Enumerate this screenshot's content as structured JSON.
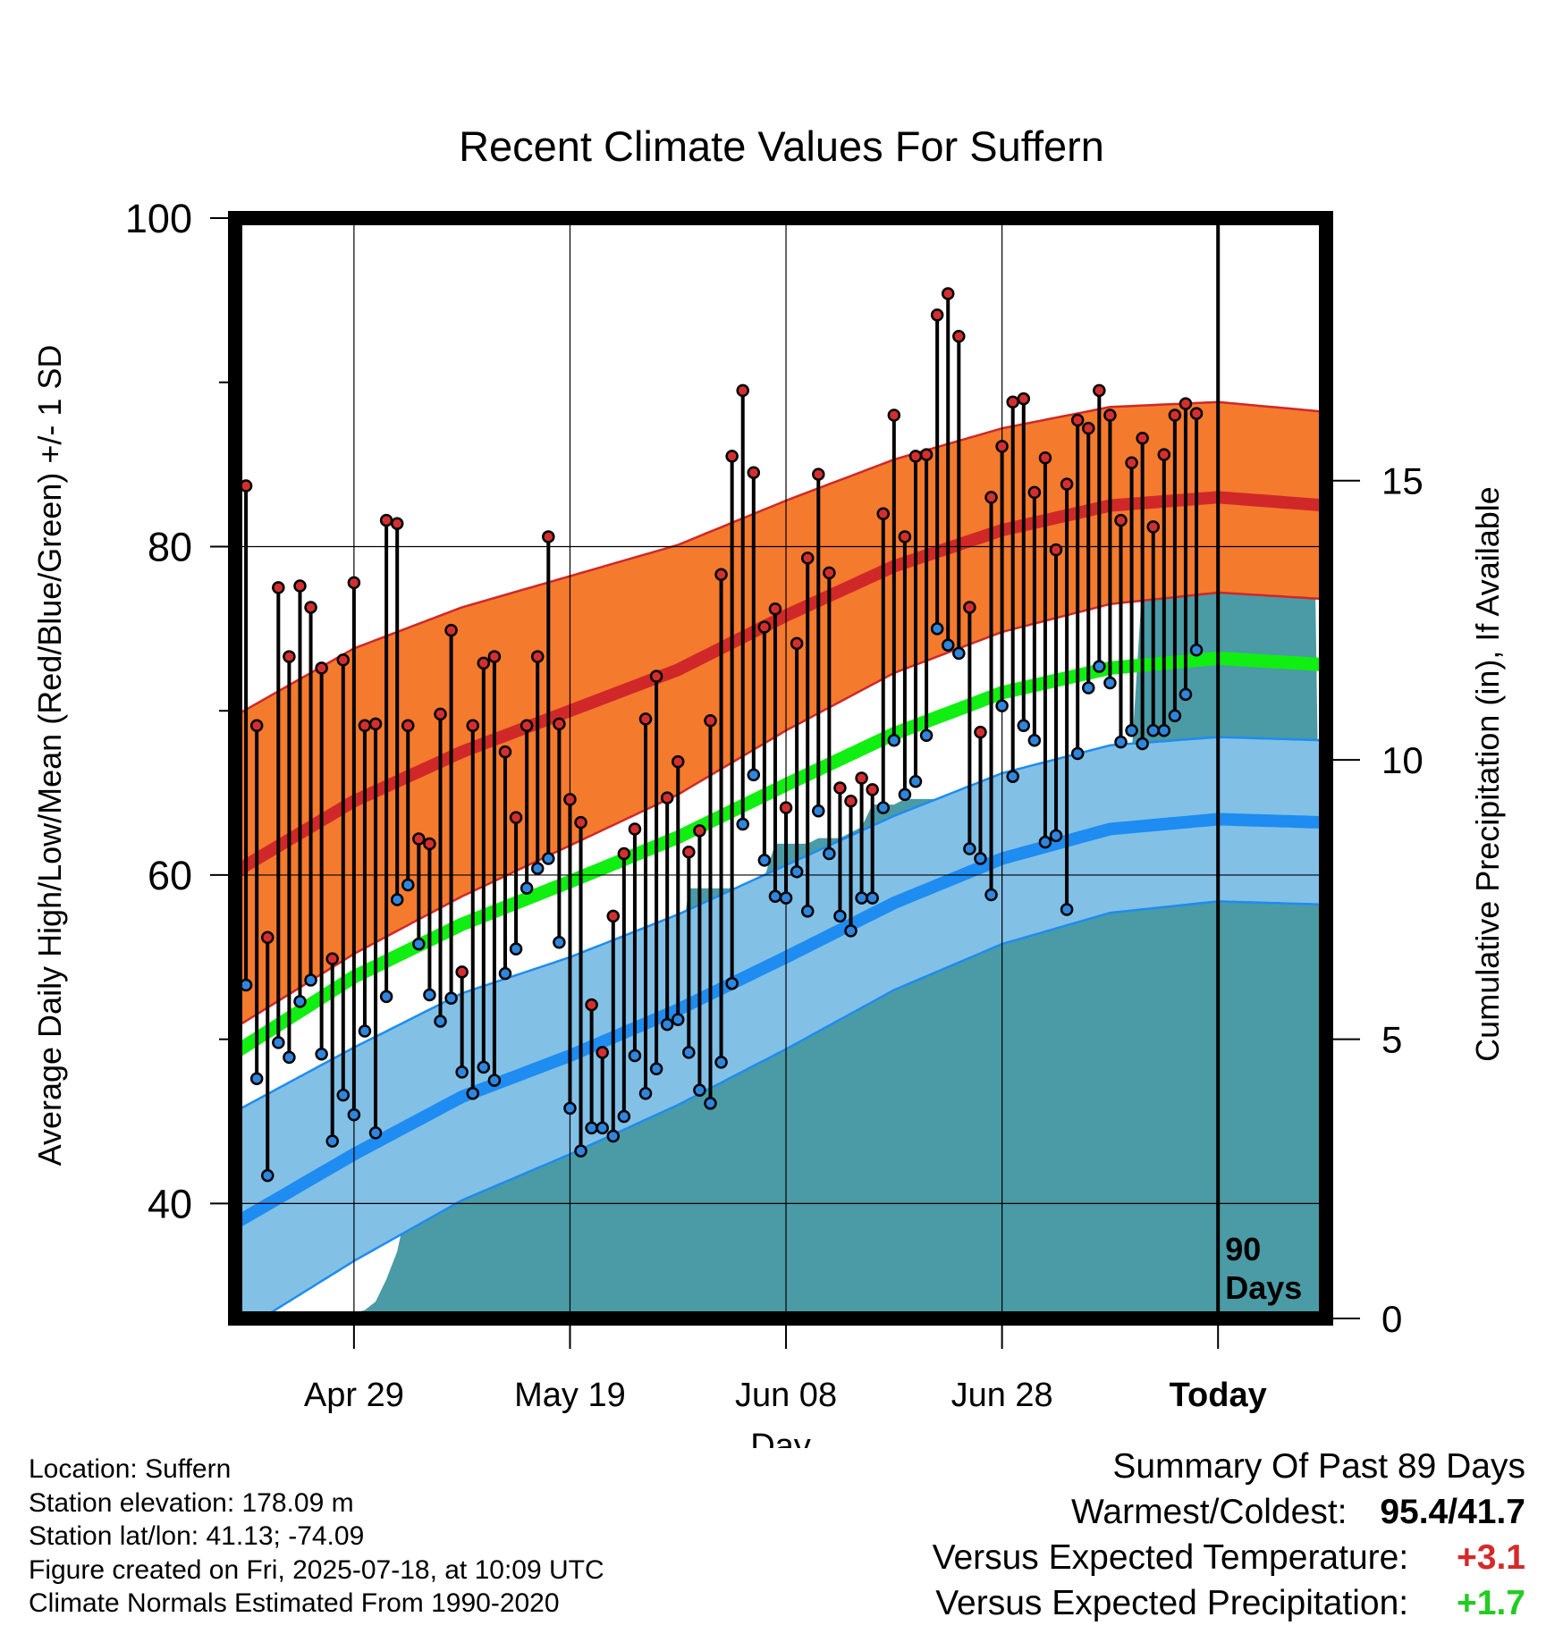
{
  "title": "Recent Climate Values For Suffern",
  "ylabel_left": "Average Daily High/Low/Mean (Red/Blue/Green) +/- 1 SD",
  "ylabel_right": "Cumulative Precipitation (in), If Available",
  "xlabel": "Day",
  "today_annotation": [
    "90",
    "Days"
  ],
  "footer": {
    "location": "Location: Suffern",
    "elevation": "Station elevation: 178.09 m",
    "latlon": "Station lat/lon: 41.13; -74.09",
    "created": "Figure created on Fri, 2025-07-18, at 10:09 UTC",
    "normals": "Climate Normals Estimated From 1990-2020"
  },
  "summary": {
    "heading": "Summary Of Past 89 Days",
    "warm_cold_label": "Warmest/Coldest:",
    "warm_cold_value": "95.4/41.7",
    "temp_label": "Versus Expected Temperature:",
    "temp_value": "+3.1",
    "temp_color": "#d42a2a",
    "precip_label": "Versus Expected Precipitation:",
    "precip_value": "+1.7",
    "precip_color": "#22cc22"
  },
  "colors": {
    "high_band": "#f47a2e",
    "high_line": "#d02828",
    "low_band": "#82c0e6",
    "low_line": "#1e8cf0",
    "mean_line": "#11ee11",
    "precip": "#4a9ba5",
    "high_dot": "#d32f2f",
    "low_dot": "#2e86de"
  },
  "chart_data": {
    "type": "line",
    "x_unit": "days, day 0 = Apr 19, Today = day 90",
    "xlim": [
      -1,
      100
    ],
    "ylim": [
      33,
      100
    ],
    "yticks": [
      40,
      60,
      80,
      100
    ],
    "precip_ylim": [
      0,
      19.7
    ],
    "precip_ticks": [
      0,
      5,
      10,
      15
    ],
    "xticks": [
      {
        "x": 10,
        "label": "Apr 29"
      },
      {
        "x": 30,
        "label": "May 19"
      },
      {
        "x": 50,
        "label": "Jun 08"
      },
      {
        "x": 70,
        "label": "Jun 28"
      },
      {
        "x": 90,
        "label": "Today"
      }
    ],
    "grid": true,
    "normals": {
      "x": [
        -1,
        10,
        20,
        30,
        40,
        50,
        60,
        70,
        80,
        90,
        100
      ],
      "high_mean": [
        60.2,
        64.5,
        67.5,
        70,
        72.5,
        75.8,
        78.8,
        81,
        82.5,
        83,
        82.5
      ],
      "high_sd": [
        9.5,
        9.3,
        8.8,
        8.2,
        7.6,
        7,
        6.5,
        6.2,
        6,
        5.8,
        5.7
      ],
      "low_mean": [
        38.8,
        43,
        46.5,
        49,
        51.8,
        55,
        58.3,
        61,
        62.8,
        63.4,
        63.2
      ],
      "low_sd": [
        6.8,
        6.5,
        6.3,
        6,
        5.8,
        5.6,
        5.3,
        5.2,
        5.1,
        5,
        5
      ],
      "avg_mean": [
        49.2,
        53.8,
        57,
        59.6,
        62.3,
        65.5,
        68.6,
        71.1,
        72.6,
        73.2,
        72.8
      ]
    },
    "series": [
      {
        "name": "High",
        "values": [
          83.7,
          69.1,
          56.2,
          77.5,
          73.3,
          77.6,
          76.3,
          72.6,
          54.9,
          73.1,
          77.8,
          69.1,
          69.2,
          81.6,
          81.4,
          69.1,
          62.2,
          61.9,
          69.8,
          74.9,
          54.1,
          69.1,
          72.9,
          73.3,
          67.5,
          63.5,
          69.1,
          73.3,
          80.6,
          69.2,
          64.6,
          63.2,
          52.1,
          49.2,
          57.5,
          61.3,
          62.8,
          69.5,
          72.1,
          64.7,
          66.9,
          61.4,
          62.7,
          69.4,
          78.3,
          85.5,
          89.5,
          84.5,
          75.1,
          76.2,
          64.1,
          74.1,
          79.3,
          84.4,
          78.4,
          65.3,
          64.5,
          65.9,
          65.2,
          82,
          88,
          80.6,
          85.5,
          85.6,
          94.1,
          95.4,
          92.8,
          76.3,
          68.7,
          83,
          86.1,
          88.8,
          89,
          83.3,
          85.4,
          79.8,
          83.8,
          87.7,
          87.2,
          89.5,
          88,
          81.6,
          85.1,
          86.6,
          81.2,
          85.6,
          88,
          88.7,
          88.1
        ]
      },
      {
        "name": "Low",
        "values": [
          53.3,
          47.6,
          41.7,
          49.8,
          48.9,
          52.3,
          53.6,
          49.1,
          43.8,
          46.6,
          45.4,
          50.5,
          44.3,
          52.6,
          58.5,
          59.4,
          55.8,
          52.7,
          51.1,
          52.5,
          48,
          46.7,
          48.3,
          47.5,
          54,
          55.5,
          59.2,
          60.4,
          61,
          55.9,
          45.8,
          43.2,
          44.6,
          44.6,
          44.1,
          45.3,
          49,
          46.7,
          48.2,
          50.9,
          51.2,
          49.2,
          46.9,
          46.1,
          48.6,
          53.4,
          63.1,
          66.1,
          60.9,
          58.7,
          58.6,
          60.2,
          57.8,
          63.9,
          61.3,
          57.5,
          56.6,
          58.6,
          58.6,
          64.1,
          68.2,
          64.9,
          65.7,
          68.5,
          75,
          74,
          73.5,
          61.6,
          61,
          58.8,
          70.3,
          66,
          69.1,
          68.2,
          62,
          62.4,
          57.9,
          67.4,
          71.4,
          72.7,
          71.7,
          68.1,
          68.8,
          68,
          68.8,
          68.8,
          69.7,
          71,
          73.7
        ]
      },
      {
        "name": "Cumulative Precipitation",
        "values": [
          0,
          0,
          0,
          0,
          0,
          0,
          0,
          0,
          0.05,
          0.05,
          0.08,
          0.1,
          0.15,
          0.3,
          0.7,
          1.2,
          2.1,
          2.3,
          2.3,
          2.8,
          3.6,
          3.6,
          3.6,
          3.6,
          3.9,
          4.4,
          4.6,
          4.7,
          4.7,
          4.7,
          4.7,
          4.7,
          5.2,
          5.8,
          5.85,
          5.85,
          5.85,
          5.85,
          6.1,
          6.2,
          6.2,
          6.2,
          7.7,
          7.7,
          7.7,
          7.7,
          7.7,
          7.7,
          7.8,
          7.9,
          8.5,
          8.5,
          8.5,
          8.5,
          8.6,
          8.6,
          8.6,
          8.7,
          8.8,
          9.2,
          9.2,
          9.2,
          9.3,
          9.3,
          9.3,
          9.3,
          9.4,
          9.4,
          9.4,
          9.4,
          9.4,
          9.5,
          9.5,
          9.6,
          9.8,
          9.8,
          9.8,
          9.8,
          9.9,
          10.1,
          10.1,
          10.1,
          10.1,
          10.1,
          13.2,
          13.2,
          13.2,
          13.2,
          13.2,
          13.2,
          13.2,
          13.2,
          13.2,
          13.2,
          13.2,
          13.2,
          13.2,
          13.2,
          13.2,
          13.2,
          13.2
        ]
      }
    ]
  }
}
